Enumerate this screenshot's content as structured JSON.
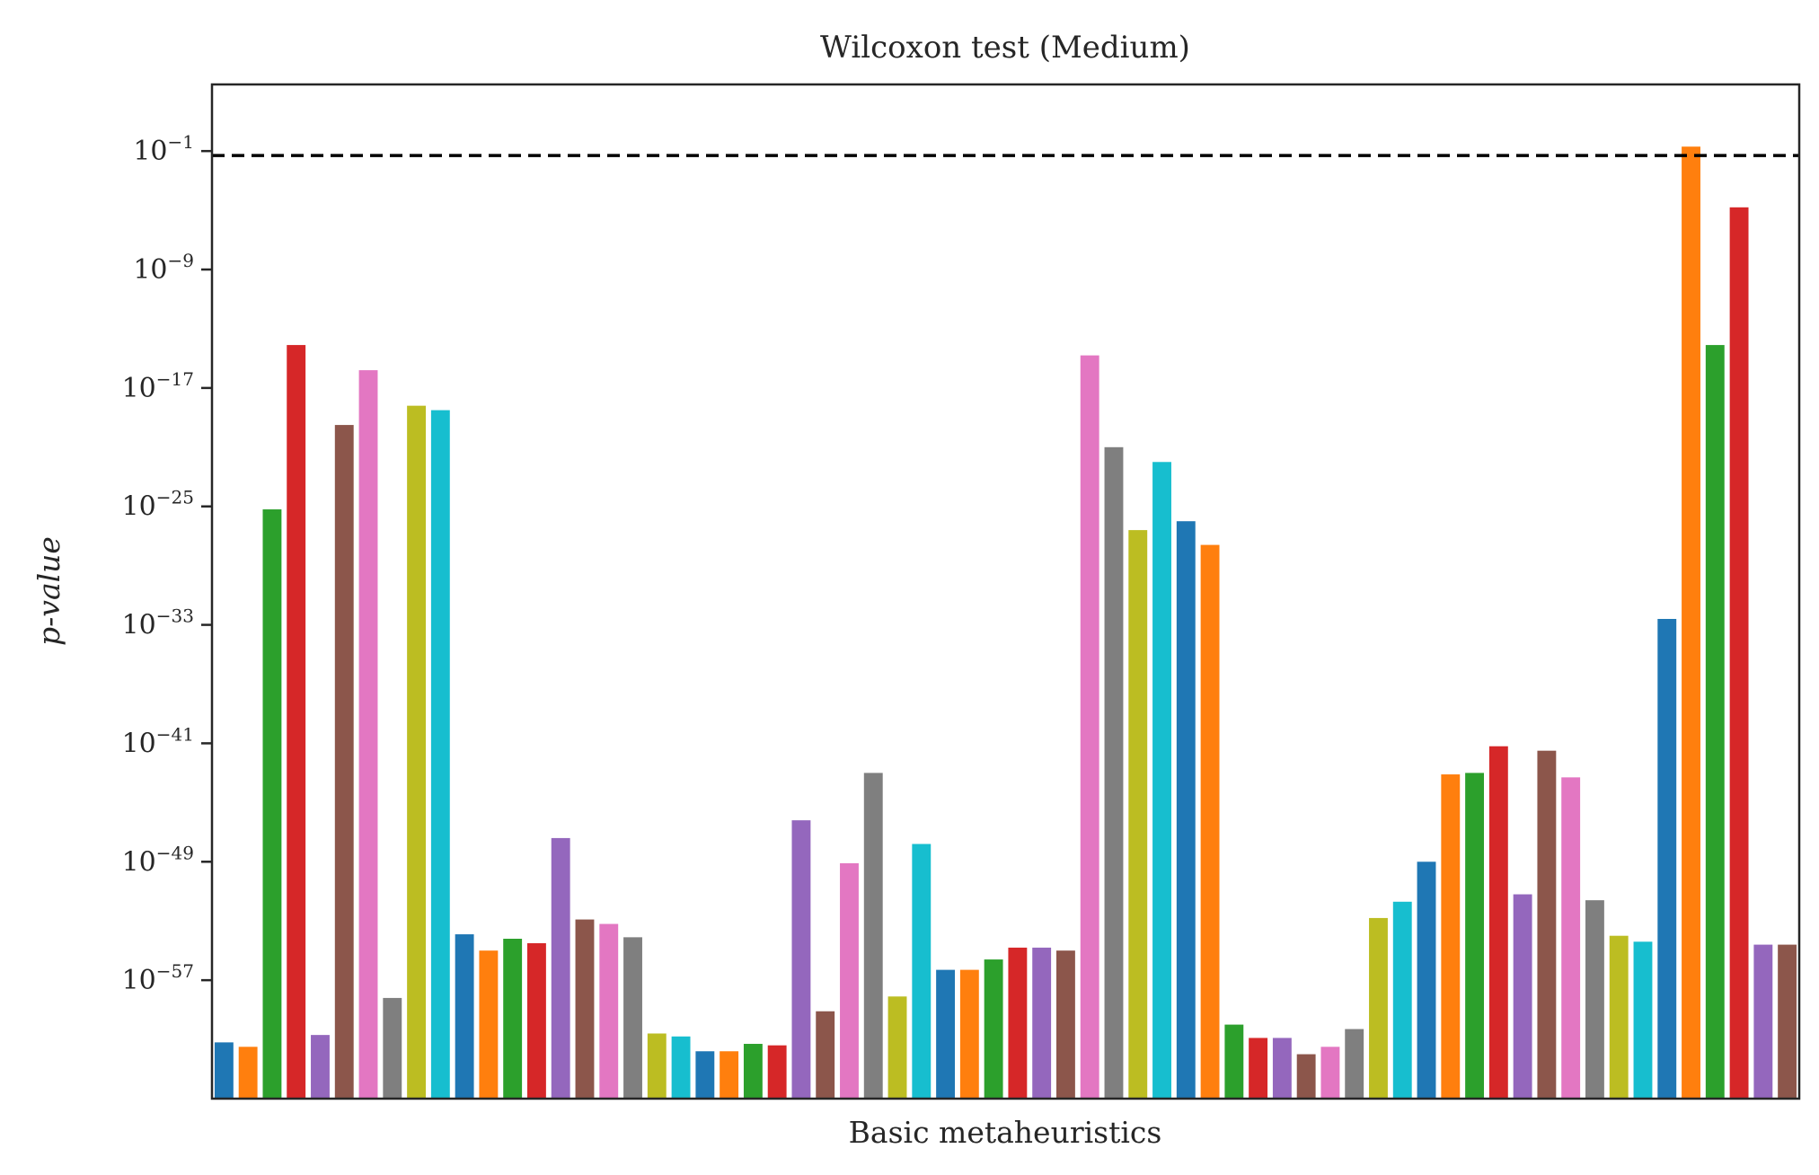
{
  "chart_data": {
    "type": "bar",
    "title": "Wilcoxon test (Medium)",
    "xlabel": "Basic metaheuristics",
    "ylabel": "p-value",
    "yscale": "log",
    "ylim_log10": [
      -65,
      3.5
    ],
    "yticks": [
      {
        "log10": -1,
        "base": "10",
        "exp": "−1"
      },
      {
        "log10": -9,
        "base": "10",
        "exp": "−9"
      },
      {
        "log10": -17,
        "base": "10",
        "exp": "−17"
      },
      {
        "log10": -25,
        "base": "10",
        "exp": "−25"
      },
      {
        "log10": -33,
        "base": "10",
        "exp": "−33"
      },
      {
        "log10": -41,
        "base": "10",
        "exp": "−41"
      },
      {
        "log10": -49,
        "base": "10",
        "exp": "−49"
      },
      {
        "log10": -57,
        "base": "10",
        "exp": "−57"
      }
    ],
    "threshold": {
      "value": 0.05,
      "log10": -1.3,
      "style": "dashed",
      "color": "#000000"
    },
    "grid": false,
    "palette": [
      "#1f77b4",
      "#ff7f0e",
      "#2ca02c",
      "#d62728",
      "#9467bd",
      "#8c564b",
      "#e377c2",
      "#7f7f7f",
      "#bcbd22",
      "#17becf"
    ],
    "log10_values": [
      -61.2,
      -61.5,
      -25.2,
      -14.1,
      -60.7,
      -19.5,
      -15.8,
      -58.2,
      -18.2,
      -18.5,
      -53.9,
      -55.0,
      -54.2,
      -54.5,
      -47.4,
      -52.9,
      -53.2,
      -54.1,
      -60.6,
      -60.8,
      -61.8,
      -61.8,
      -61.3,
      -61.4,
      -46.2,
      -59.1,
      -49.1,
      -43.0,
      -58.1,
      -47.8,
      -56.3,
      -56.3,
      -55.6,
      -54.8,
      -54.8,
      -55.0,
      -14.8,
      -21.0,
      -26.6,
      -22.0,
      -26.0,
      -27.6,
      -60.0,
      -60.9,
      -60.9,
      -62.0,
      -61.5,
      -60.3,
      -52.8,
      -51.7,
      -49.0,
      -43.1,
      -43.0,
      -41.2,
      -51.2,
      -41.5,
      -43.3,
      -51.6,
      -54.0,
      -54.4,
      -32.6,
      -0.7,
      -14.1,
      -4.8,
      -54.6,
      -54.6
    ]
  }
}
